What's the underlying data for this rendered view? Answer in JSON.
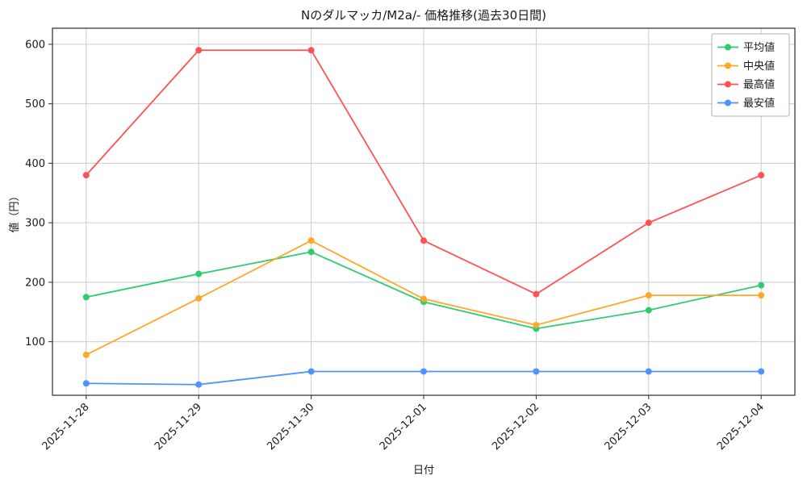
{
  "chart_data": {
    "type": "line",
    "title": "Nのダルマッカ/M2a/- 価格推移(過去30日間)",
    "xlabel": "日付",
    "ylabel": "値（円）",
    "categories": [
      "2025-11-28",
      "2025-11-29",
      "2025-11-30",
      "2025-12-01",
      "2025-12-02",
      "2025-12-03",
      "2025-12-04"
    ],
    "series": [
      {
        "name": "平均値",
        "color": "#2ecc71",
        "values": [
          175,
          214,
          251,
          167,
          122,
          153,
          195
        ]
      },
      {
        "name": "中央値",
        "color": "#ffa726",
        "values": [
          78,
          173,
          270,
          172,
          128,
          178,
          178
        ]
      },
      {
        "name": "最高値",
        "color": "#ff5252",
        "values": [
          380,
          590,
          590,
          270,
          180,
          300,
          380
        ]
      },
      {
        "name": "最安値",
        "color": "#4d94ff",
        "values": [
          30,
          28,
          50,
          50,
          50,
          50,
          50
        ]
      }
    ],
    "yticks": [
      100,
      200,
      300,
      400,
      500,
      600
    ],
    "ylim": [
      10,
      627
    ],
    "grid": true,
    "legend_position": "upper right",
    "colors": {
      "grid": "#cccccc",
      "axis_border": "#2b2b2b",
      "text": "#1a1a1a",
      "legend_border": "#b3b3b3",
      "background": "#ffffff"
    }
  }
}
